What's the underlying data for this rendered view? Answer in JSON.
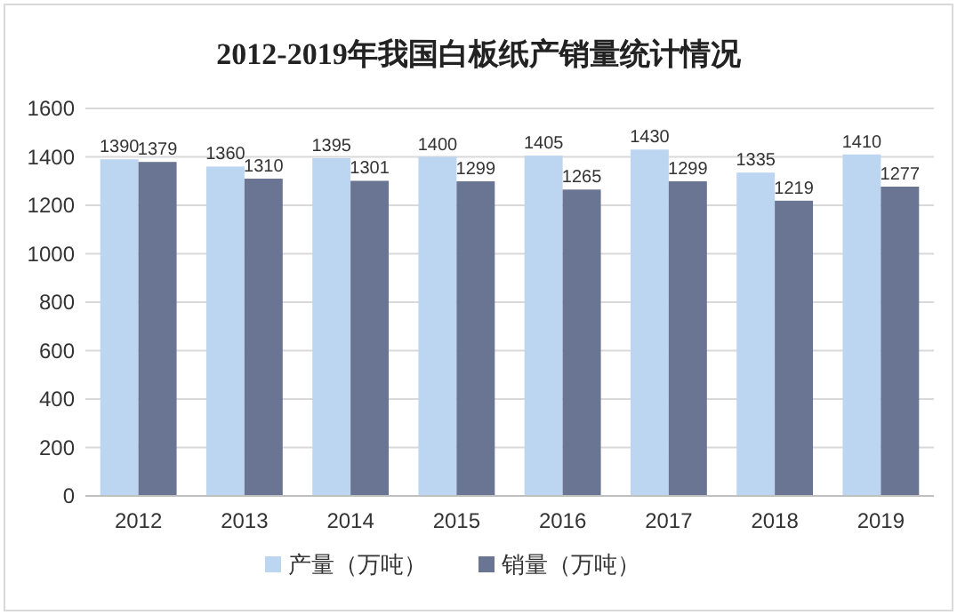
{
  "chart_data": {
    "type": "bar",
    "title": "2012-2019年我国白板纸产销量统计情况",
    "categories": [
      "2012",
      "2013",
      "2014",
      "2015",
      "2016",
      "2017",
      "2018",
      "2019"
    ],
    "series": [
      {
        "name": "产量（万吨）",
        "color": "#bcd5f0",
        "values": [
          1390,
          1360,
          1395,
          1400,
          1405,
          1430,
          1335,
          1410
        ]
      },
      {
        "name": "销量（万吨）",
        "color": "#6a7493",
        "values": [
          1379,
          1310,
          1301,
          1299,
          1265,
          1299,
          1219,
          1277
        ]
      }
    ],
    "ylim": [
      0,
      1600
    ],
    "yticks": [
      0,
      200,
      400,
      600,
      800,
      1000,
      1200,
      1400,
      1600
    ],
    "grid": "y",
    "legend": "bottom",
    "data_labels": true
  }
}
